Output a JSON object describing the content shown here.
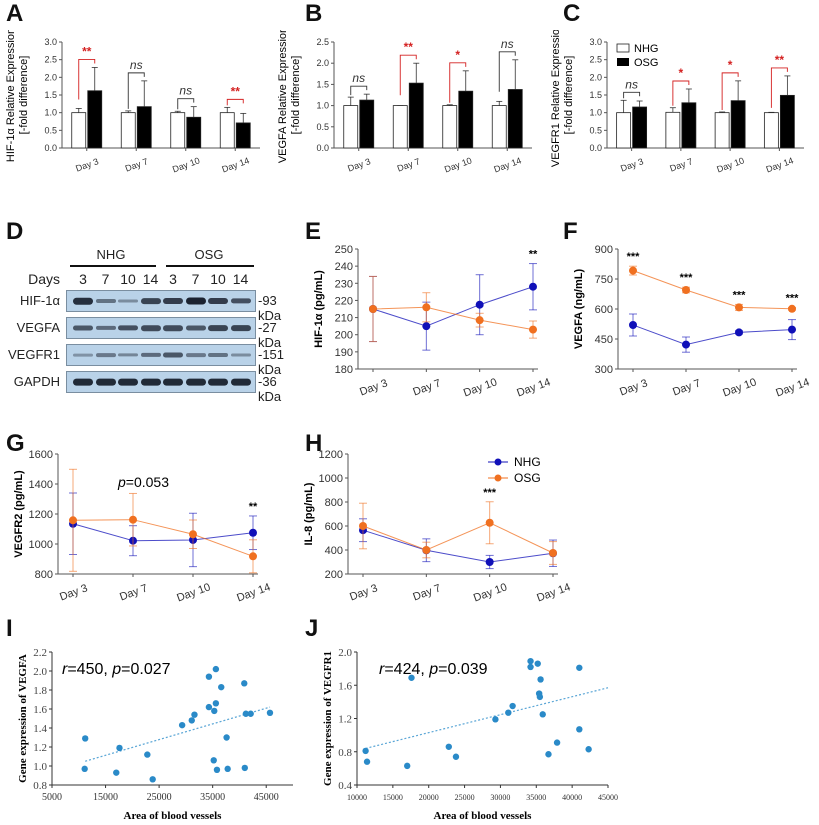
{
  "legend": {
    "nhg": "NHG",
    "osg": "OSG",
    "nhg_color": "#1010b8",
    "osg_color": "#f07020",
    "nhg_bar_fill": "#ffffff",
    "osg_bar_fill": "#000000"
  },
  "panels": {
    "A": "A",
    "B": "B",
    "C": "C",
    "D": "D",
    "E": "E",
    "F": "F",
    "G": "G",
    "H": "H",
    "I": "I",
    "J": "J"
  },
  "blot": {
    "groups": [
      "NHG",
      "OSG"
    ],
    "days_label": "Days",
    "lanes": [
      "3",
      "7",
      "10",
      "14",
      "3",
      "7",
      "10",
      "14"
    ],
    "rows": [
      {
        "name": "HIF-1α",
        "kda": "-93 kDa",
        "intensity": [
          0.9,
          0.4,
          0.2,
          0.75,
          0.8,
          1.0,
          0.8,
          0.65
        ]
      },
      {
        "name": "VEGFA",
        "kda": "-27 kDa",
        "intensity": [
          0.6,
          0.45,
          0.65,
          0.7,
          0.7,
          0.6,
          0.75,
          0.75
        ]
      },
      {
        "name": "VEGFR1",
        "kda": "-151 kDa",
        "intensity": [
          0.15,
          0.35,
          0.25,
          0.45,
          0.6,
          0.35,
          0.4,
          0.2
        ]
      },
      {
        "name": "GAPDH",
        "kda": "-36 kDa",
        "intensity": [
          0.95,
          0.95,
          0.95,
          0.95,
          0.95,
          0.95,
          0.95,
          0.95
        ]
      }
    ]
  },
  "chart_data": [
    {
      "id": "A",
      "type": "bar",
      "title": "",
      "ylabel": "HIF-1α  Relative Expression",
      "ylabel2": "[-fold difference]",
      "categories": [
        "Day 3",
        "Day 7",
        "Day 10",
        "Day 14"
      ],
      "ylim": [
        0,
        3.0
      ],
      "yticks": [
        "0.0",
        "0.5",
        "1.0",
        "1.5",
        "2.0",
        "2.5",
        "3.0"
      ],
      "series": [
        {
          "name": "NHG",
          "values": [
            1.0,
            1.0,
            1.0,
            1.0
          ],
          "err": [
            0.12,
            0.05,
            0.04,
            0.15
          ]
        },
        {
          "name": "OSG",
          "values": [
            1.62,
            1.17,
            0.87,
            0.71
          ],
          "err": [
            0.66,
            0.73,
            0.3,
            0.27
          ]
        }
      ],
      "significance": [
        {
          "label": "**",
          "color": "red",
          "italic": false
        },
        {
          "label": "ns",
          "color": "black",
          "italic": true
        },
        {
          "label": "ns",
          "color": "black",
          "italic": true
        },
        {
          "label": "**",
          "color": "red",
          "italic": false
        }
      ]
    },
    {
      "id": "B",
      "type": "bar",
      "title": "",
      "ylabel": "VEGFA  Relative Expression",
      "ylabel2": "[-fold difference]",
      "categories": [
        "Day 3",
        "Day 7",
        "Day 10",
        "Day 14"
      ],
      "ylim": [
        0,
        2.5
      ],
      "yticks": [
        "0.0",
        "0.5",
        "1.0",
        "1.5",
        "2.0",
        "2.5"
      ],
      "series": [
        {
          "name": "NHG",
          "values": [
            1.0,
            1.0,
            1.0,
            1.0
          ],
          "err": [
            0.2,
            0.0,
            0.02,
            0.1
          ]
        },
        {
          "name": "OSG",
          "values": [
            1.13,
            1.53,
            1.34,
            1.38
          ],
          "err": [
            0.14,
            0.47,
            0.48,
            0.7
          ]
        }
      ],
      "significance": [
        {
          "label": "ns",
          "color": "black",
          "italic": true
        },
        {
          "label": "**",
          "color": "red",
          "italic": false
        },
        {
          "label": "*",
          "color": "red",
          "italic": false
        },
        {
          "label": "ns",
          "color": "black",
          "italic": true
        }
      ]
    },
    {
      "id": "C",
      "type": "bar",
      "title": "",
      "ylabel": "VEGFR1 Relative Expression",
      "ylabel2": "[-fold difference]",
      "categories": [
        "Day 3",
        "Day 7",
        "Day 10",
        "Day 14"
      ],
      "ylim": [
        0,
        3.0
      ],
      "yticks": [
        "0.0",
        "0.5",
        "1.0",
        "1.5",
        "2.0",
        "2.5",
        "3.0"
      ],
      "legend": "top-left",
      "series": [
        {
          "name": "NHG",
          "values": [
            1.0,
            1.01,
            1.0,
            1.0
          ],
          "err": [
            0.35,
            0.13,
            0.02,
            0.01
          ]
        },
        {
          "name": "OSG",
          "values": [
            1.16,
            1.28,
            1.34,
            1.49
          ],
          "err": [
            0.17,
            0.39,
            0.56,
            0.55
          ]
        }
      ],
      "significance": [
        {
          "label": "ns",
          "color": "black",
          "italic": true
        },
        {
          "label": "*",
          "color": "red",
          "italic": false
        },
        {
          "label": "*",
          "color": "red",
          "italic": false
        },
        {
          "label": "**",
          "color": "red",
          "italic": false
        }
      ]
    },
    {
      "id": "E",
      "type": "line",
      "ylabel": "HIF-1α  (pg/mL)",
      "categories": [
        "Day 3",
        "Day 7",
        "Day 10",
        "Day 14"
      ],
      "ylim": [
        180,
        250
      ],
      "yticks": [
        "180",
        "190",
        "200",
        "210",
        "220",
        "230",
        "240",
        "250"
      ],
      "series": [
        {
          "name": "NHG",
          "values": [
            215,
            205,
            217.5,
            228
          ],
          "err": [
            19,
            14,
            17.5,
            13.5
          ]
        },
        {
          "name": "OSG",
          "values": [
            215,
            216,
            208.5,
            203
          ],
          "err": [
            19,
            8.5,
            4,
            5
          ]
        }
      ],
      "annotations": [
        "",
        "",
        "",
        "**"
      ]
    },
    {
      "id": "F",
      "type": "line",
      "ylabel": "VEGFA (ng/mL)",
      "categories": [
        "Day 3",
        "Day 7",
        "Day 10",
        "Day 14"
      ],
      "ylim": [
        300,
        900
      ],
      "yticks": [
        "300",
        "450",
        "600",
        "750",
        "900"
      ],
      "series": [
        {
          "name": "NHG",
          "values": [
            520,
            422,
            483,
            497
          ],
          "err": [
            55,
            38,
            8,
            50
          ]
        },
        {
          "name": "OSG",
          "values": [
            792,
            695,
            608,
            601
          ],
          "err": [
            22,
            14,
            15,
            6
          ]
        }
      ],
      "annotations": [
        "***",
        "***",
        "***",
        "***"
      ]
    },
    {
      "id": "G",
      "type": "line",
      "ylabel": "VEGFR2 (pg/mL)",
      "categories": [
        "Day 3",
        "Day 7",
        "Day 10",
        "Day 14"
      ],
      "ylim": [
        800,
        1600
      ],
      "yticks": [
        "800",
        "1000",
        "1200",
        "1400",
        "1600"
      ],
      "series": [
        {
          "name": "NHG",
          "values": [
            1135,
            1022,
            1027,
            1075
          ],
          "err": [
            205,
            100,
            178,
            112
          ]
        },
        {
          "name": "OSG",
          "values": [
            1158,
            1162,
            1065,
            918
          ],
          "err": [
            340,
            175,
            95,
            110
          ]
        }
      ],
      "annotations": [
        "",
        "",
        "",
        "**"
      ],
      "text_annotation": {
        "italic": "p",
        "rest": "=0.053"
      }
    },
    {
      "id": "H",
      "type": "line",
      "ylabel": "IL-8 (pg/mL)",
      "categories": [
        "Day 3",
        "Day 7",
        "Day 10",
        "Day 14"
      ],
      "ylim": [
        200,
        1200
      ],
      "yticks": [
        "200",
        "400",
        "600",
        "800",
        "1000",
        "1200"
      ],
      "legend": "top-right",
      "series": [
        {
          "name": "NHG",
          "values": [
            565,
            398,
            300,
            373
          ],
          "err": [
            95,
            95,
            55,
            110
          ]
        },
        {
          "name": "OSG",
          "values": [
            600,
            400,
            627,
            375
          ],
          "err": [
            190,
            65,
            175,
            95
          ]
        }
      ],
      "annotations": [
        "",
        "",
        "***",
        ""
      ]
    },
    {
      "id": "I",
      "type": "scatter",
      "xlabel": "Area of blood vessels",
      "ylabel": "Gene expression of VEGFA",
      "xlim": [
        5000,
        50000
      ],
      "ylim": [
        0.8,
        2.2
      ],
      "xticks": [
        "5000",
        "15000",
        "25000",
        "35000",
        "45000"
      ],
      "yticks": [
        "0.8",
        "1.0",
        "1.2",
        "1.4",
        "1.6",
        "1.8",
        "2.0",
        "2.2"
      ],
      "annotation": {
        "r_italic": "r",
        "r_rest": "=450, ",
        "p_italic": "p",
        "p_rest": "=0.027"
      },
      "points": [
        [
          11200,
          1.29
        ],
        [
          11100,
          0.97
        ],
        [
          17000,
          0.93
        ],
        [
          17600,
          1.19
        ],
        [
          22800,
          1.12
        ],
        [
          23800,
          0.86
        ],
        [
          29300,
          1.43
        ],
        [
          31100,
          1.48
        ],
        [
          31600,
          1.54
        ],
        [
          34300,
          1.94
        ],
        [
          34300,
          1.62
        ],
        [
          35300,
          1.58
        ],
        [
          35600,
          2.02
        ],
        [
          35600,
          1.66
        ],
        [
          36600,
          1.83
        ],
        [
          35200,
          1.06
        ],
        [
          35800,
          0.96
        ],
        [
          37600,
          1.3
        ],
        [
          37800,
          0.97
        ],
        [
          40900,
          1.87
        ],
        [
          41200,
          1.55
        ],
        [
          42100,
          1.55
        ],
        [
          41000,
          0.98
        ],
        [
          45700,
          1.56
        ]
      ],
      "trend": [
        [
          11200,
          1.05
        ],
        [
          45700,
          1.62
        ]
      ]
    },
    {
      "id": "J",
      "type": "scatter",
      "xlabel": "Area of blood vessels",
      "ylabel": "Gene expression of VEGFR1",
      "xlim": [
        10000,
        45000
      ],
      "ylim": [
        0.4,
        2.0
      ],
      "xticks": [
        "10000",
        "15000",
        "20000",
        "25000",
        "30000",
        "35000",
        "40000",
        "45000"
      ],
      "yticks": [
        "0.4",
        "0.8",
        "1.2",
        "1.6",
        "2.0"
      ],
      "annotation": {
        "r_italic": "r",
        "r_rest": "=424, ",
        "p_italic": "p",
        "p_rest": "=0.039"
      },
      "points": [
        [
          11200,
          0.81
        ],
        [
          11400,
          0.68
        ],
        [
          17000,
          0.63
        ],
        [
          17600,
          1.69
        ],
        [
          22800,
          0.86
        ],
        [
          23800,
          0.74
        ],
        [
          29300,
          1.19
        ],
        [
          31100,
          1.27
        ],
        [
          31700,
          1.35
        ],
        [
          34200,
          1.89
        ],
        [
          34200,
          1.82
        ],
        [
          35200,
          1.86
        ],
        [
          35600,
          1.67
        ],
        [
          35400,
          1.5
        ],
        [
          35500,
          1.46
        ],
        [
          35900,
          1.25
        ],
        [
          36700,
          0.77
        ],
        [
          37900,
          0.91
        ],
        [
          41000,
          1.81
        ],
        [
          41000,
          1.07
        ],
        [
          42300,
          0.83
        ]
      ],
      "trend": [
        [
          11200,
          0.84
        ],
        [
          45000,
          1.57
        ]
      ]
    }
  ]
}
